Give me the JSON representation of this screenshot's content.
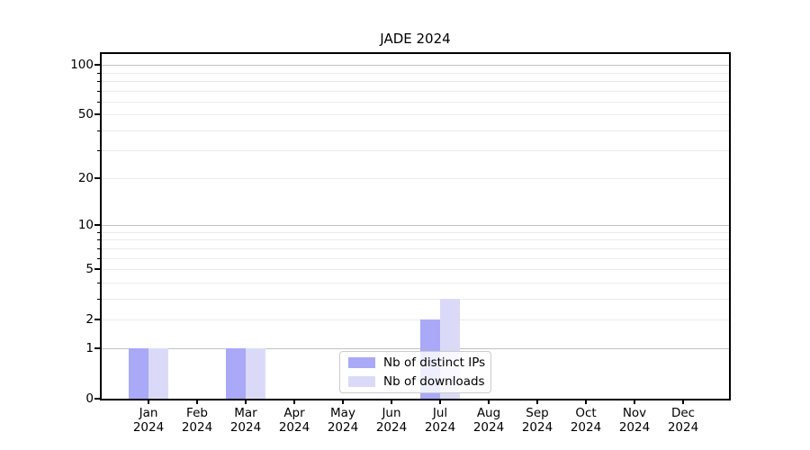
{
  "chart_data": {
    "type": "bar",
    "title": "JADE 2024",
    "categories": [
      {
        "month": "Jan",
        "year": "2024"
      },
      {
        "month": "Feb",
        "year": "2024"
      },
      {
        "month": "Mar",
        "year": "2024"
      },
      {
        "month": "Apr",
        "year": "2024"
      },
      {
        "month": "May",
        "year": "2024"
      },
      {
        "month": "Jun",
        "year": "2024"
      },
      {
        "month": "Jul",
        "year": "2024"
      },
      {
        "month": "Aug",
        "year": "2024"
      },
      {
        "month": "Sep",
        "year": "2024"
      },
      {
        "month": "Oct",
        "year": "2024"
      },
      {
        "month": "Nov",
        "year": "2024"
      },
      {
        "month": "Dec",
        "year": "2024"
      }
    ],
    "series": [
      {
        "name": "Nb of distinct IPs",
        "color": "#a9a9f8",
        "values": [
          1,
          0,
          1,
          0,
          0,
          0,
          2,
          0,
          0,
          0,
          0,
          0
        ]
      },
      {
        "name": "Nb of downloads",
        "color": "#dadaf8",
        "values": [
          1,
          0,
          1,
          0,
          0,
          0,
          3,
          0,
          0,
          0,
          0,
          0
        ]
      }
    ],
    "y_axis": {
      "scale": "log1p",
      "tick_labels": [
        "0",
        "1",
        "2",
        "5",
        "10",
        "20",
        "50",
        "100"
      ],
      "ticks": [
        0,
        1,
        2,
        5,
        10,
        20,
        50,
        100
      ],
      "major_gridlines": [
        1,
        10,
        100
      ],
      "minor_gridlines": [
        2,
        3,
        4,
        5,
        6,
        7,
        8,
        9,
        20,
        30,
        40,
        50,
        60,
        70,
        80,
        90
      ],
      "range_max": 117
    },
    "legend": {
      "position": "lower center",
      "entries": [
        "Nb of distinct IPs",
        "Nb of downloads"
      ]
    },
    "colors": {
      "grid_major": "#c2c2c2",
      "grid_minor": "#eaeaea",
      "spine": "#000000",
      "background": "#ffffff"
    }
  }
}
